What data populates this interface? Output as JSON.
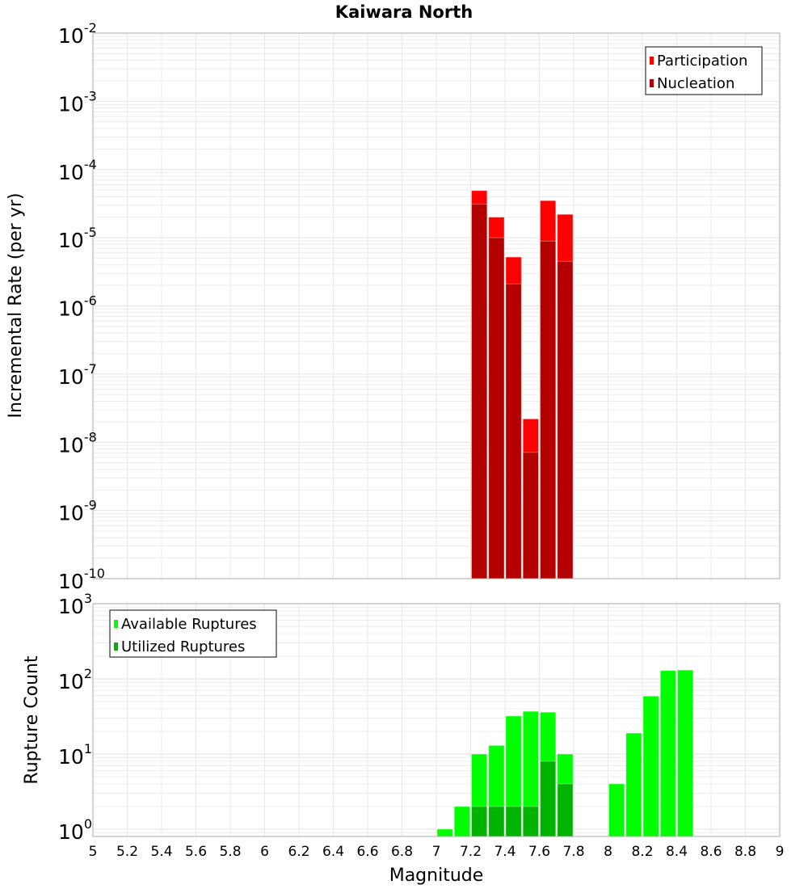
{
  "chart_data": [
    {
      "type": "bar",
      "title": "Kaiwara North",
      "xlabel": "Magnitude",
      "ylabel": "Incremental Rate (per yr)",
      "xlim": [
        5,
        9
      ],
      "ylim": [
        1e-10,
        0.01
      ],
      "yscale": "log",
      "bar_width": 0.1,
      "grid": true,
      "legend_position": "top-right",
      "x": [
        7.25,
        7.35,
        7.45,
        7.55,
        7.65,
        7.75
      ],
      "series": [
        {
          "name": "Participation",
          "color": "#ff0000",
          "values": [
            4.9e-05,
            2e-05,
            5.2e-06,
            2.2e-08,
            3.5e-05,
            2.2e-05
          ]
        },
        {
          "name": "Nucleation",
          "color": "#b30000",
          "values": [
            3.1e-05,
            1e-05,
            2.1e-06,
            7.1e-09,
            8.9e-06,
            4.5e-06
          ]
        }
      ],
      "ytick_exponents": [
        "-10",
        "-9",
        "-8",
        "-7",
        "-6",
        "-5",
        "-4",
        "-3",
        "-2"
      ]
    },
    {
      "type": "bar",
      "xlabel": "Magnitude",
      "ylabel": "Rupture Count",
      "xlim": [
        5,
        9
      ],
      "ylim": [
        0.8,
        1000
      ],
      "yscale": "log",
      "bar_width": 0.1,
      "grid": true,
      "legend_position": "top-left",
      "x": [
        7.05,
        7.15,
        7.25,
        7.35,
        7.45,
        7.55,
        7.65,
        7.75,
        8.05,
        8.15,
        8.25,
        8.35,
        8.45
      ],
      "series": [
        {
          "name": "Available Ruptures",
          "color": "#00ff00",
          "values": [
            1,
            2,
            10,
            13,
            32,
            37,
            36,
            10,
            4,
            19,
            59,
            129,
            131
          ]
        },
        {
          "name": "Utilized Ruptures",
          "color": "#00b300",
          "values": [
            0,
            0,
            2,
            2,
            2,
            2,
            8,
            4,
            0,
            0,
            0,
            0,
            0
          ]
        }
      ],
      "ytick_exponents": [
        "0",
        "1",
        "2",
        "3"
      ],
      "xticks": [
        "5",
        "5.2",
        "5.4",
        "5.6",
        "5.8",
        "6",
        "6.2",
        "6.4",
        "6.6",
        "6.8",
        "7",
        "7.2",
        "7.4",
        "7.6",
        "7.8",
        "8",
        "8.2",
        "8.4",
        "8.6",
        "8.8",
        "9"
      ]
    }
  ]
}
